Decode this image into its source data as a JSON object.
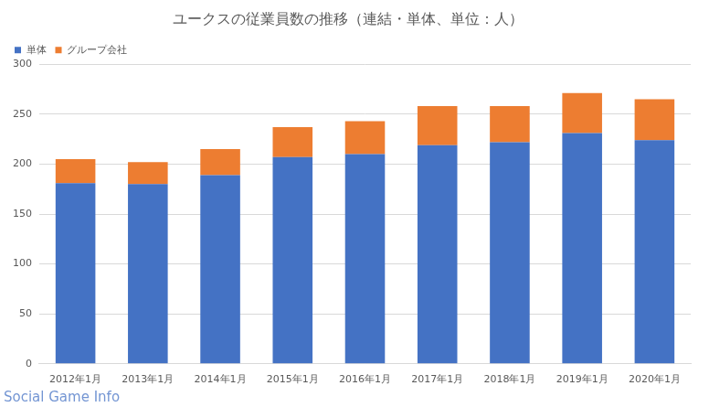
{
  "chart_data": {
    "type": "bar",
    "title": "ユークスの従業員数の推移（連結・単体、単位：人）",
    "categories": [
      "2012年1月",
      "2013年1月",
      "2014年1月",
      "2015年1月",
      "2016年1月",
      "2017年1月",
      "2018年1月",
      "2019年1月",
      "2020年1月"
    ],
    "series": [
      {
        "name": "単体",
        "color": "#4472c4",
        "values": [
          181,
          180,
          189,
          207,
          210,
          219,
          222,
          231,
          224
        ]
      },
      {
        "name": "グループ会社",
        "color": "#ed7d31",
        "values": [
          24,
          22,
          26,
          30,
          33,
          39,
          36,
          40,
          41
        ]
      }
    ],
    "stacked": true,
    "ylim": [
      0,
      300
    ],
    "yticks": [
      0,
      50,
      100,
      150,
      200,
      250,
      300
    ],
    "grid": true,
    "legend": "top-left",
    "annotations": [
      "Social Game Info"
    ]
  }
}
